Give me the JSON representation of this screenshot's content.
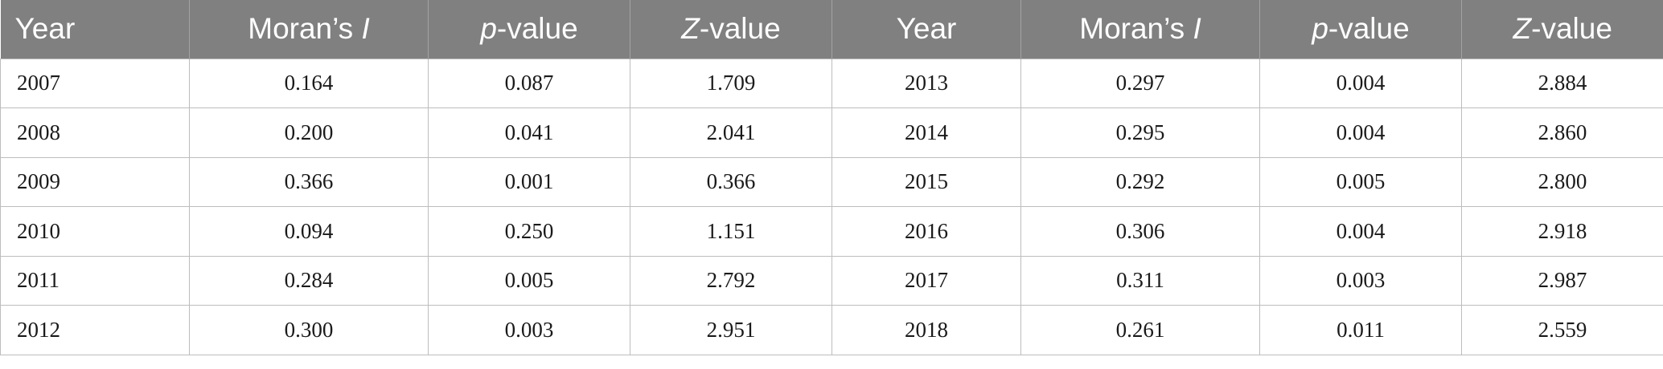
{
  "headers": [
    {
      "pre": "Year",
      "it": "",
      "post": ""
    },
    {
      "pre": "Moran’s ",
      "it": "I",
      "post": ""
    },
    {
      "pre": "",
      "it": "p",
      "post": "-value"
    },
    {
      "pre": "",
      "it": "Z",
      "post": "-value"
    },
    {
      "pre": "Year",
      "it": "",
      "post": ""
    },
    {
      "pre": "Moran’s ",
      "it": "I",
      "post": ""
    },
    {
      "pre": "",
      "it": "p",
      "post": "-value"
    },
    {
      "pre": "",
      "it": "Z",
      "post": "-value"
    }
  ],
  "rows": [
    [
      "2007",
      "0.164",
      "0.087",
      "1.709",
      "2013",
      "0.297",
      "0.004",
      "2.884"
    ],
    [
      "2008",
      "0.200",
      "0.041",
      "2.041",
      "2014",
      "0.295",
      "0.004",
      "2.860"
    ],
    [
      "2009",
      "0.366",
      "0.001",
      "0.366",
      "2015",
      "0.292",
      "0.005",
      "2.800"
    ],
    [
      "2010",
      "0.094",
      "0.250",
      "1.151",
      "2016",
      "0.306",
      "0.004",
      "2.918"
    ],
    [
      "2011",
      "0.284",
      "0.005",
      "2.792",
      "2017",
      "0.311",
      "0.003",
      "2.987"
    ],
    [
      "2012",
      "0.300",
      "0.003",
      "2.951",
      "2018",
      "0.261",
      "0.011",
      "2.559"
    ]
  ],
  "colors": {
    "header_bg": "#7f807f",
    "header_text": "#ffffff",
    "grid": "#bdbdbd"
  }
}
